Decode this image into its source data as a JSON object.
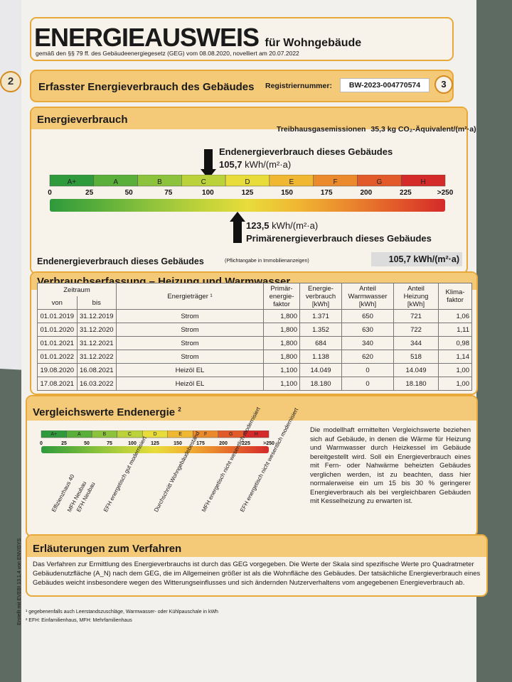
{
  "prev_page": {
    "number": "2"
  },
  "header": {
    "title": "ENERGIEAUSWEIS",
    "title_suffix": "für Wohngebäude",
    "subtitle": "gemäß den §§ 79 ff. des Gebäudeenergiegesetz (GEG) vom 08.08.2020, novelliert am 20.07.2022"
  },
  "section_bar": {
    "title": "Erfasster Energieverbrauch des Gebäudes",
    "reg_label": "Registriernummer:",
    "reg_value": "BW-2023-004770574",
    "page": "3"
  },
  "energieverbrauch": {
    "title": "Energieverbrauch",
    "ghg_label": "Treibhausgasemissionen",
    "ghg_value": "35,3",
    "ghg_unit": "kg CO₂-Äquivalent/(m²·a)",
    "end_label": "Endenergieverbrauch dieses Gebäudes",
    "end_value": "105,7",
    "end_unit": "kWh/(m²·a)",
    "primary_value": "123,5",
    "primary_unit": "kWh/(m²·a)",
    "primary_label": "Primärenergieverbrauch dieses Gebäudes",
    "classes": [
      "A+",
      "A",
      "B",
      "C",
      "D",
      "E",
      "F",
      "G",
      "H"
    ],
    "ticks": [
      "0",
      "25",
      "50",
      "75",
      "100",
      "125",
      "150",
      "175",
      "200",
      "225",
      ">250"
    ]
  },
  "summary": {
    "label": "Endenergieverbrauch dieses Gebäudes",
    "note": "(Pflichtangabe in Immobilienanzeigen)",
    "value": "105,7 kWh/(m²·a)"
  },
  "verbrauch": {
    "title": "Verbrauchserfassung – Heizung und Warmwasser",
    "headers": {
      "zeitraum": "Zeitraum",
      "von": "von",
      "bis": "bis",
      "traeger": "Energieträger ¹",
      "primaer": "Primär-energie-faktor",
      "energie": "Energie-verbrauch [kWh]",
      "ww": "Anteil Warmwasser [kWh]",
      "heiz": "Anteil Heizung [kWh]",
      "klima": "Klima-faktor"
    },
    "rows": [
      [
        "01.01.2019",
        "31.12.2019",
        "Strom",
        "1,800",
        "1.371",
        "650",
        "721",
        "1,06"
      ],
      [
        "01.01.2020",
        "31.12.2020",
        "Strom",
        "1,800",
        "1.352",
        "630",
        "722",
        "1,11"
      ],
      [
        "01.01.2021",
        "31.12.2021",
        "Strom",
        "1,800",
        "684",
        "340",
        "344",
        "0,98"
      ],
      [
        "01.01.2022",
        "31.12.2022",
        "Strom",
        "1,800",
        "1.138",
        "620",
        "518",
        "1,14"
      ],
      [
        "19.08.2020",
        "16.08.2021",
        "Heizöl EL",
        "1,100",
        "14.049",
        "0",
        "14.049",
        "1,00"
      ],
      [
        "17.08.2021",
        "16.03.2022",
        "Heizöl EL",
        "1,100",
        "18.180",
        "0",
        "18.180",
        "1,00"
      ]
    ]
  },
  "vergleich": {
    "title": "Vergleichswerte Endenergie",
    "title_sup": "2",
    "classes": [
      "A+",
      "A",
      "B",
      "C",
      "D",
      "E",
      "F",
      "G",
      "H"
    ],
    "ticks": [
      "0",
      "25",
      "50",
      "75",
      "100",
      "125",
      "150",
      "175",
      "200",
      "225",
      ">250"
    ],
    "labels": [
      "Effizienzhaus 40",
      "MFH Neubau",
      "EFH Neubau",
      "EFH energetisch gut modernisiert",
      "Durchschnitt Wohngebäudebestand",
      "MFH energetisch nicht wesentlich modernisiert",
      "EFH energetisch nicht wesentlich modernisiert"
    ],
    "text": "Die modellhaft ermittelten Vergleichswerte beziehen sich auf Gebäude, in denen die Wärme für Heizung und Warmwasser durch Heizkessel im Gebäude bereitgestellt wird. Soll ein Energieverbrauch eines mit Fern- oder Nahwärme beheizten Gebäudes verglichen werden, ist zu beachten, dass hier normalerweise ein um 15 bis 30 % geringerer Energieverbrauch als bei vergleichbaren Gebäuden mit Kesselheizung zu erwarten ist."
  },
  "erlaeuterung": {
    "title": "Erläuterungen zum Verfahren",
    "text": "Das Verfahren zur Ermittlung des Energieverbrauchs ist durch das GEG vorgegeben. Die Werte der Skala sind spezifische Werte pro Quadratmeter Gebäudenutzfläche (A_N) nach dem GEG, die im Allgemeinen größer ist als die Wohnfläche des Gebäudes. Der tatsächliche Energieverbrauch eines Gebäudes weicht insbesondere wegen des Witterungseinflusses und sich ändernden Nutzerverhaltens vom angegebenen Energieverbrauch ab."
  },
  "side_note": "Erstellt mit EVEBI 13.1.4 von ENVISYS",
  "footnotes": [
    "¹ gegebenenfalls auch Leerstandszuschläge, Warmwasser- oder Kühlpauschale in kWh",
    "² EFH: Einfamilienhaus, MFH: Mehrfamilienhaus"
  ],
  "colors": {
    "accent": "#e9a93a",
    "header_fill": "#f4c978",
    "class_colors": [
      "#2e9a3c",
      "#5aae3a",
      "#8cc23c",
      "#bcd23a",
      "#e8dc3a",
      "#f0b733",
      "#ea8a2d",
      "#e25a2a",
      "#d42a2a"
    ]
  }
}
